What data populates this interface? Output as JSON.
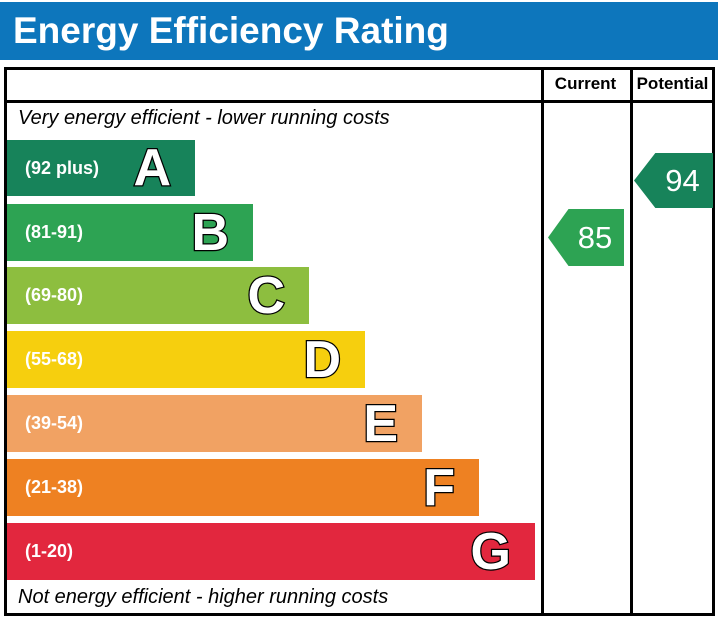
{
  "header": {
    "title": "Energy Efficiency Rating",
    "background_color": "#0d76bc"
  },
  "table": {
    "column_headers": {
      "current": "Current",
      "potential": "Potential"
    },
    "top_note": "Very energy efficient - lower running costs",
    "bottom_note": "Not energy efficient - higher running costs"
  },
  "chart_data": {
    "type": "bar",
    "title": "Energy Efficiency Rating",
    "orientation": "horizontal",
    "columns": [
      "Current",
      "Potential"
    ],
    "top_annotation": "Very energy efficient - lower running costs",
    "bottom_annotation": "Not energy efficient - higher running costs",
    "bands": [
      {
        "letter": "A",
        "range_label": "(92 plus)",
        "range_min": 92,
        "range_max": 100,
        "color": "#17835a"
      },
      {
        "letter": "B",
        "range_label": "(81-91)",
        "range_min": 81,
        "range_max": 91,
        "color": "#2da353"
      },
      {
        "letter": "C",
        "range_label": "(69-80)",
        "range_min": 69,
        "range_max": 80,
        "color": "#8dbe3f"
      },
      {
        "letter": "D",
        "range_label": "(55-68)",
        "range_min": 55,
        "range_max": 68,
        "color": "#f6cf0e"
      },
      {
        "letter": "E",
        "range_label": "(39-54)",
        "range_min": 39,
        "range_max": 54,
        "color": "#f1a263"
      },
      {
        "letter": "F",
        "range_label": "(21-38)",
        "range_min": 21,
        "range_max": 38,
        "color": "#ee8122"
      },
      {
        "letter": "G",
        "range_label": "(1-20)",
        "range_min": 1,
        "range_max": 20,
        "color": "#e2273e"
      }
    ],
    "ratings": {
      "current": {
        "value": 85,
        "band": "B",
        "color": "#2da353"
      },
      "potential": {
        "value": 94,
        "band": "A",
        "color": "#17835a"
      }
    }
  }
}
